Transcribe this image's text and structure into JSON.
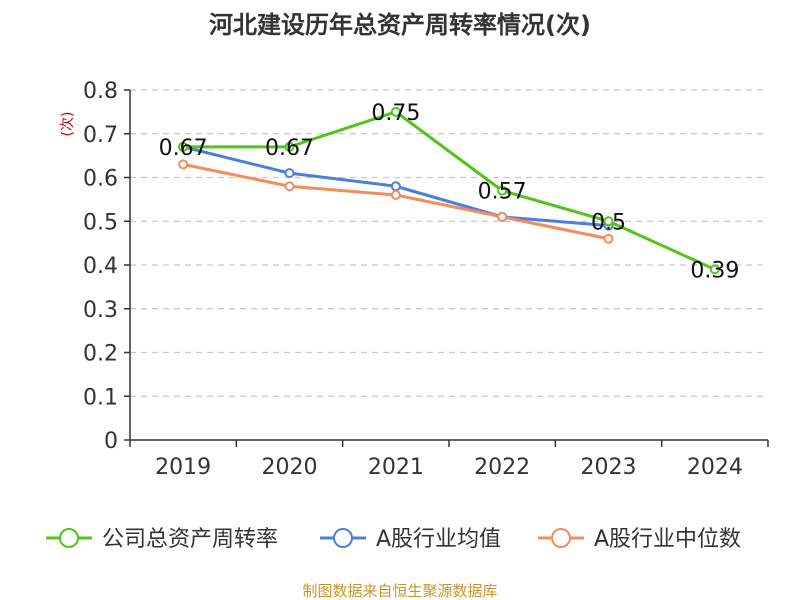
{
  "chart_data": {
    "type": "line",
    "title": "河北建设历年总资产周转率情况(次)",
    "ylabel": "(次)",
    "xlabel": "",
    "categories": [
      "2019",
      "2020",
      "2021",
      "2022",
      "2023",
      "2024"
    ],
    "ylim": [
      0,
      0.8
    ],
    "yticks": [
      "0",
      "0.1",
      "0.2",
      "0.3",
      "0.4",
      "0.5",
      "0.6",
      "0.7",
      "0.8"
    ],
    "grid": true,
    "legend_position": "bottom",
    "series": [
      {
        "name": "公司总资产周转率",
        "color": "#52c41a",
        "values": [
          0.67,
          0.67,
          0.75,
          0.57,
          0.5,
          0.39
        ],
        "labels": [
          "0.67",
          "0.67",
          "0.75",
          "0.57",
          "0.5",
          "0.39"
        ]
      },
      {
        "name": "A股行业均值",
        "color": "#4a7fdc",
        "values": [
          0.67,
          0.61,
          0.58,
          0.51,
          0.49,
          null
        ],
        "labels": null
      },
      {
        "name": "A股行业中位数",
        "color": "#f48c5c",
        "values": [
          0.63,
          0.58,
          0.56,
          0.51,
          0.46,
          null
        ],
        "labels": null
      }
    ]
  },
  "source": "制图数据来自恒生聚源数据库"
}
